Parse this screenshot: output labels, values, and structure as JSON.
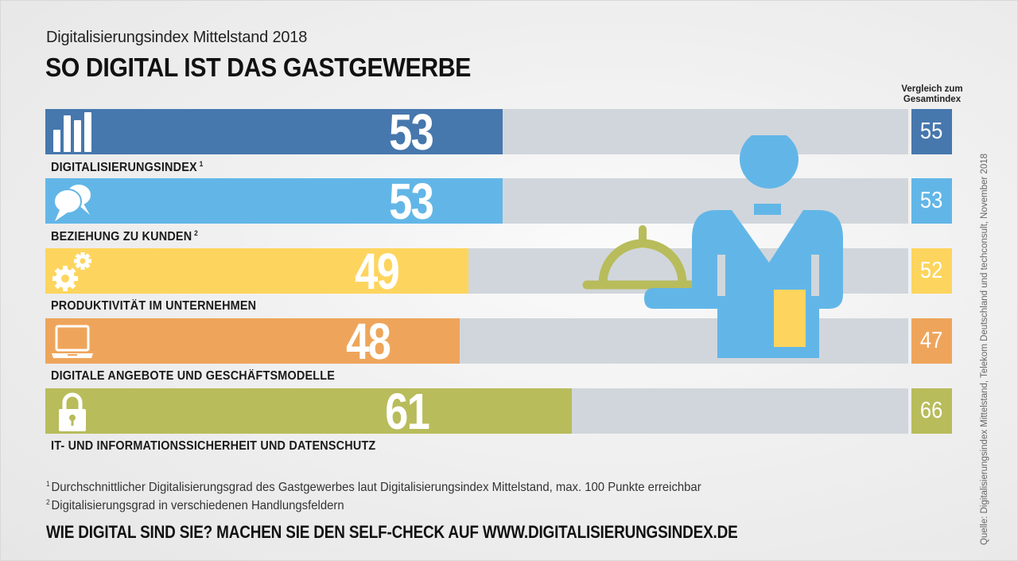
{
  "header": {
    "subtitle": "Digitalisierungsindex Mittelstand 2018",
    "title": "SO DIGITAL IST DAS GASTGEWERBE",
    "comparison_heading_line1": "Vergleich zum",
    "comparison_heading_line2": "Gesamtindex"
  },
  "chart_data": {
    "type": "bar",
    "orientation": "horizontal",
    "title": "SO DIGITAL IST DAS GASTGEWERBE",
    "subtitle": "Digitalisierungsindex Mittelstand 2018",
    "xlim": [
      0,
      100
    ],
    "categories": [
      "DIGITALISIERUNGSINDEX",
      "BEZIEHUNG ZU KUNDEN",
      "PRODUKTIVITÄT IM UNTERNEHMEN",
      "DIGITALE ANGEBOTE UND GESCHÄFTSMODELLE",
      "IT- UND INFORMATIONSSICHERHEIT UND DATENSCHUTZ"
    ],
    "category_footnote_marks": [
      "1",
      "2",
      "",
      "",
      ""
    ],
    "series": [
      {
        "name": "Gastgewerbe",
        "values": [
          53,
          53,
          49,
          48,
          61
        ]
      },
      {
        "name": "Vergleich zum Gesamtindex",
        "values": [
          55,
          53,
          52,
          47,
          66
        ]
      }
    ],
    "colors": [
      "#4677ad",
      "#62b6e7",
      "#fdd55e",
      "#eea55b",
      "#b8bc5b"
    ],
    "track_color": "#d1d6dc",
    "icons": [
      "bar-chart-icon",
      "speech-bubbles-icon",
      "gears-icon",
      "laptop-icon",
      "padlock-icon"
    ]
  },
  "illustration": {
    "name": "waiter-with-cloche",
    "colors": {
      "body": "#62b6e7",
      "cloche": "#b8bc5b",
      "towel": "#fdd55e"
    }
  },
  "footnotes": [
    {
      "mark": "1",
      "text": "Durchschnittlicher Digitalisierungsgrad des Gastgewerbes laut Digitalisierungsindex Mittelstand, max. 100 Punkte erreichbar"
    },
    {
      "mark": "2",
      "text": "Digitalisierungsgrad in verschiedenen Handlungsfeldern"
    }
  ],
  "cta": "WIE DIGITAL SIND SIE? MACHEN SIE DEN SELF-CHECK AUF WWW.DIGITALISIERUNGSINDEX.DE",
  "source": "Quelle: Digitalisierungsindex Mittelstand, Telekom Deutschland und techconsult, November 2018"
}
